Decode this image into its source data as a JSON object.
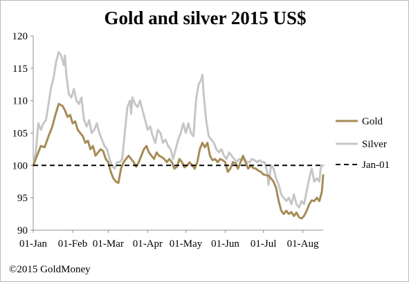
{
  "chart_data": {
    "type": "line",
    "title": "Gold and silver 2015 US$",
    "xlabel": "",
    "ylabel": "",
    "ylim": [
      90,
      120
    ],
    "yticks": [
      90,
      95,
      100,
      105,
      110,
      115,
      120
    ],
    "x_tick_labels": [
      "01-Jan",
      "01-Feb",
      "01-Mar",
      "01-Apr",
      "01-May",
      "01-Jun",
      "01-Jul",
      "01-Aug"
    ],
    "x_tick_days": [
      0,
      31,
      59,
      90,
      120,
      151,
      181,
      212
    ],
    "grid": false,
    "legend_position": "right",
    "series": [
      {
        "name": "Gold",
        "color": "#a68b57",
        "points": [
          [
            0,
            100
          ],
          [
            3,
            101.5
          ],
          [
            6,
            103
          ],
          [
            9,
            102.8
          ],
          [
            12,
            104.5
          ],
          [
            15,
            106
          ],
          [
            17,
            107.5
          ],
          [
            20,
            109.5
          ],
          [
            23,
            109.2
          ],
          [
            25,
            108.5
          ],
          [
            27,
            107.5
          ],
          [
            29,
            107.8
          ],
          [
            31,
            106.5
          ],
          [
            33,
            106.8
          ],
          [
            35,
            105.5
          ],
          [
            37,
            105
          ],
          [
            39,
            104.5
          ],
          [
            41,
            103.5
          ],
          [
            43,
            103.8
          ],
          [
            45,
            102.5
          ],
          [
            47,
            103
          ],
          [
            49,
            101.5
          ],
          [
            51,
            102
          ],
          [
            53,
            102.5
          ],
          [
            55,
            102.2
          ],
          [
            57,
            101
          ],
          [
            59,
            100.5
          ],
          [
            61,
            99
          ],
          [
            63,
            98
          ],
          [
            65,
            97.5
          ],
          [
            67,
            97.3
          ],
          [
            69,
            99.5
          ],
          [
            71,
            100.5
          ],
          [
            73,
            101
          ],
          [
            75,
            101.5
          ],
          [
            77,
            101
          ],
          [
            79,
            100.5
          ],
          [
            81,
            99.8
          ],
          [
            83,
            100.5
          ],
          [
            85,
            101.5
          ],
          [
            87,
            102.5
          ],
          [
            89,
            103
          ],
          [
            91,
            102
          ],
          [
            93,
            101.5
          ],
          [
            95,
            101
          ],
          [
            97,
            102
          ],
          [
            99,
            101.5
          ],
          [
            101,
            101.3
          ],
          [
            103,
            101
          ],
          [
            105,
            100.5
          ],
          [
            107,
            101
          ],
          [
            109,
            100.5
          ],
          [
            111,
            99.5
          ],
          [
            113,
            99.8
          ],
          [
            115,
            101
          ],
          [
            117,
            100.5
          ],
          [
            119,
            99.7
          ],
          [
            121,
            100
          ],
          [
            123,
            100.5
          ],
          [
            125,
            100
          ],
          [
            127,
            99.5
          ],
          [
            129,
            100.5
          ],
          [
            131,
            102.5
          ],
          [
            133,
            103.5
          ],
          [
            135,
            102.8
          ],
          [
            137,
            103.5
          ],
          [
            139,
            101.5
          ],
          [
            141,
            100.8
          ],
          [
            143,
            101
          ],
          [
            145,
            100.5
          ],
          [
            147,
            101
          ],
          [
            149,
            100.8
          ],
          [
            151,
            100.5
          ],
          [
            153,
            99
          ],
          [
            155,
            99.5
          ],
          [
            157,
            100.5
          ],
          [
            159,
            100.3
          ],
          [
            161,
            99.5
          ],
          [
            163,
            100.5
          ],
          [
            165,
            101.5
          ],
          [
            167,
            100.5
          ],
          [
            169,
            99.5
          ],
          [
            171,
            100
          ],
          [
            173,
            99.6
          ],
          [
            175,
            99.5
          ],
          [
            177,
            99.2
          ],
          [
            179,
            99
          ],
          [
            181,
            98.6
          ],
          [
            183,
            98.5
          ],
          [
            185,
            98.4
          ],
          [
            187,
            98
          ],
          [
            189,
            97.5
          ],
          [
            191,
            96.5
          ],
          [
            193,
            94.5
          ],
          [
            195,
            93
          ],
          [
            197,
            92.5
          ],
          [
            199,
            93
          ],
          [
            201,
            92.5
          ],
          [
            203,
            92.8
          ],
          [
            205,
            92.2
          ],
          [
            207,
            92.7
          ],
          [
            209,
            92
          ],
          [
            211,
            91.8
          ],
          [
            213,
            92.2
          ],
          [
            215,
            93
          ],
          [
            217,
            94
          ],
          [
            219,
            94.6
          ],
          [
            221,
            94.5
          ],
          [
            223,
            95
          ],
          [
            225,
            94.5
          ],
          [
            227,
            96
          ],
          [
            228,
            98.5
          ]
        ]
      },
      {
        "name": "Silver",
        "color": "#c6c6c6",
        "points": [
          [
            0,
            100
          ],
          [
            2,
            102
          ],
          [
            4,
            106.5
          ],
          [
            6,
            105.5
          ],
          [
            8,
            106.5
          ],
          [
            10,
            107
          ],
          [
            12,
            109.5
          ],
          [
            14,
            112
          ],
          [
            16,
            113.5
          ],
          [
            18,
            116
          ],
          [
            20,
            117.5
          ],
          [
            22,
            117
          ],
          [
            24,
            115.5
          ],
          [
            25,
            117
          ],
          [
            26,
            114
          ],
          [
            28,
            111
          ],
          [
            30,
            110.5
          ],
          [
            32,
            111.8
          ],
          [
            34,
            110
          ],
          [
            36,
            109.5
          ],
          [
            38,
            110.5
          ],
          [
            39,
            108.5
          ],
          [
            40,
            107
          ],
          [
            42,
            106
          ],
          [
            44,
            107
          ],
          [
            46,
            105
          ],
          [
            48,
            105.5
          ],
          [
            50,
            106.5
          ],
          [
            52,
            105
          ],
          [
            54,
            104
          ],
          [
            56,
            103
          ],
          [
            58,
            102.5
          ],
          [
            60,
            101
          ],
          [
            62,
            100
          ],
          [
            64,
            99.5
          ],
          [
            66,
            100.5
          ],
          [
            68,
            100.5
          ],
          [
            70,
            101
          ],
          [
            72,
            105
          ],
          [
            73,
            107
          ],
          [
            74,
            109
          ],
          [
            76,
            110
          ],
          [
            77,
            108
          ],
          [
            78,
            110.5
          ],
          [
            80,
            109.5
          ],
          [
            82,
            109
          ],
          [
            84,
            110
          ],
          [
            86,
            108.5
          ],
          [
            88,
            107
          ],
          [
            90,
            105.5
          ],
          [
            92,
            106
          ],
          [
            94,
            104.5
          ],
          [
            96,
            103.5
          ],
          [
            98,
            105.5
          ],
          [
            100,
            105
          ],
          [
            102,
            103.5
          ],
          [
            104,
            104
          ],
          [
            106,
            103
          ],
          [
            108,
            102.5
          ],
          [
            110,
            101
          ],
          [
            112,
            102.5
          ],
          [
            114,
            104
          ],
          [
            116,
            105
          ],
          [
            118,
            106.5
          ],
          [
            120,
            105
          ],
          [
            122,
            106.5
          ],
          [
            124,
            105
          ],
          [
            126,
            104.5
          ],
          [
            128,
            110
          ],
          [
            130,
            112.5
          ],
          [
            132,
            113.2
          ],
          [
            133,
            114
          ],
          [
            134,
            111
          ],
          [
            136,
            107
          ],
          [
            138,
            104.5
          ],
          [
            140,
            104
          ],
          [
            142,
            103.5
          ],
          [
            144,
            102.5
          ],
          [
            146,
            102
          ],
          [
            148,
            102.5
          ],
          [
            150,
            101.5
          ],
          [
            152,
            101
          ],
          [
            154,
            102
          ],
          [
            156,
            101.5
          ],
          [
            158,
            101
          ],
          [
            160,
            100.5
          ],
          [
            162,
            101
          ],
          [
            164,
            100.8
          ],
          [
            166,
            101
          ],
          [
            168,
            100.5
          ],
          [
            170,
            100.5
          ],
          [
            172,
            101
          ],
          [
            174,
            100.8
          ],
          [
            176,
            100.5
          ],
          [
            178,
            100.8
          ],
          [
            180,
            100.5
          ],
          [
            182,
            100.5
          ],
          [
            184,
            99
          ],
          [
            185,
            97
          ],
          [
            187,
            100
          ],
          [
            189,
            99.5
          ],
          [
            191,
            98
          ],
          [
            193,
            97
          ],
          [
            195,
            95.5
          ],
          [
            197,
            95
          ],
          [
            199,
            94.5
          ],
          [
            201,
            95
          ],
          [
            203,
            94
          ],
          [
            205,
            95.5
          ],
          [
            207,
            94
          ],
          [
            209,
            93.5
          ],
          [
            211,
            94.5
          ],
          [
            213,
            94
          ],
          [
            215,
            96
          ],
          [
            217,
            98
          ],
          [
            219,
            99.5
          ],
          [
            221,
            97.5
          ],
          [
            223,
            98
          ],
          [
            225,
            97.5
          ],
          [
            226,
            99.5
          ],
          [
            227,
            100
          ],
          [
            228,
            100
          ]
        ]
      },
      {
        "name": "Jan-01",
        "color": "#000000",
        "dashed": true,
        "points": [
          [
            0,
            100
          ],
          [
            228,
            100
          ]
        ]
      }
    ]
  },
  "footer": {
    "copyright": "©2015 GoldMoney"
  }
}
